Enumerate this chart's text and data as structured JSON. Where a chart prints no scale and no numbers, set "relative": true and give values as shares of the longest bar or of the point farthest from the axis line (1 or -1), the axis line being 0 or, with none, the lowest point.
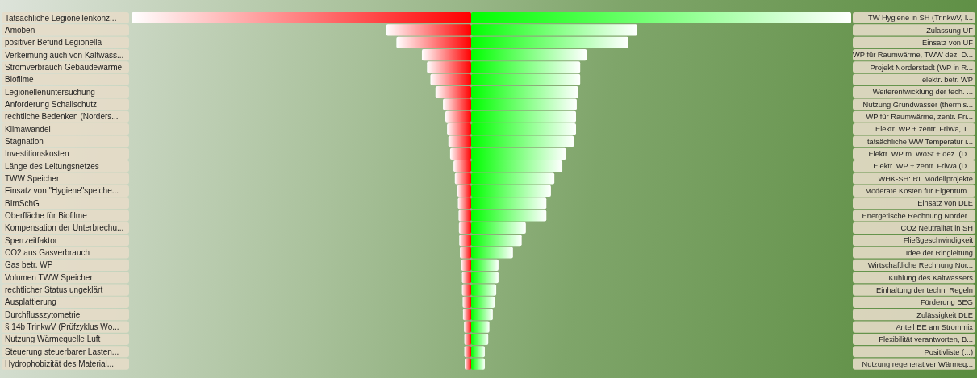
{
  "chart_data": [
    {
      "type": "bar",
      "orientation": "horizontal",
      "relative": true,
      "color": "#ff0000",
      "categories": [
        "Tatsächliche Legionellenkonz...",
        "Amöben",
        "positiver Befund Legionella",
        "Verkeimung auch von Kaltwass...",
        "Stromverbrauch Gebäudewärme",
        "Biofilme",
        "Legionellenuntersuchung",
        "Anforderung Schallschutz",
        "rechtliche Bedenken (Norders...",
        "Klimawandel",
        "Stagnation",
        "Investitionskosten",
        "Länge des Leitungsnetzes",
        "TWW Speicher",
        "Einsatz von \"Hygiene\"speiche...",
        "BImSchG",
        "Oberfläche für Biofilme",
        "Kompensation der Unterbrechu...",
        "Sperrzeitfaktor",
        "CO2 aus Gasverbrauch",
        "Gas betr. WP",
        "Volumen TWW Speicher",
        "rechtlicher Status ungeklärt",
        "Ausplattierung",
        "Durchflusszytometrie",
        "§ 14b TrinkwV (Prüfzyklus Wo...",
        "Nutzung Wärmequelle Luft",
        "Steuerung steuerbarer Lasten...",
        "Hydrophobizität des Material..."
      ],
      "values": [
        -1,
        -0.25,
        -0.22,
        -0.145,
        -0.13,
        -0.12,
        -0.105,
        -0.083,
        -0.076,
        -0.071,
        -0.067,
        -0.062,
        -0.052,
        -0.048,
        -0.041,
        -0.039,
        -0.037,
        -0.036,
        -0.035,
        -0.033,
        -0.029,
        -0.027,
        -0.027,
        -0.025,
        -0.024,
        -0.021,
        -0.02,
        -0.02,
        -0.019
      ]
    },
    {
      "type": "bar",
      "orientation": "horizontal",
      "relative": true,
      "color": "#00ff00",
      "categories": [
        "TW Hygiene in SH (TrinkwV, I...",
        "Zulassung UF",
        "Einsatz von UF",
        "WP für Raumwärme, TWW dez. D...",
        "Projekt Norderstedt (WP in R...",
        "elektr. betr. WP",
        "Weiterentwicklung der tech. ...",
        "Nutzung Grundwasser (thermis...",
        "WP für Raumwärme, zentr. Fri...",
        "Elektr. WP + zentr. FriWa, T...",
        "tatsächliche WW Temperatur i...",
        "Elektr. WP m. WoSt + dez. (D...",
        "Elektr. WP + zentr. FriWa (D...",
        "WHK-SH: RL Modellprojekte",
        "Moderate Kosten für Eigentüm...",
        "Einsatz von DLE",
        "Energetische Rechnung Norder...",
        "CO2 Neutralität in SH",
        "Fließgeschwindigkeit",
        "Idee der Ringleitung",
        "Wirtschaftliche Rechnung Nor...",
        "Kühlung des Kaltwassers",
        "Einhaltung der techn. Regeln",
        "Förderung BEG",
        "Zulässigkeit DLE",
        "Anteil EE am Strommix",
        "Flexibilität verantworten, B...",
        "Positivliste (...)",
        "Nutzung regenerativer Wärmeq..."
      ],
      "values": [
        1,
        0.437,
        0.414,
        0.304,
        0.287,
        0.287,
        0.282,
        0.278,
        0.276,
        0.276,
        0.27,
        0.25,
        0.24,
        0.219,
        0.21,
        0.198,
        0.198,
        0.144,
        0.133,
        0.11,
        0.072,
        0.072,
        0.066,
        0.062,
        0.057,
        0.048,
        0.045,
        0.036,
        0.036
      ]
    }
  ]
}
